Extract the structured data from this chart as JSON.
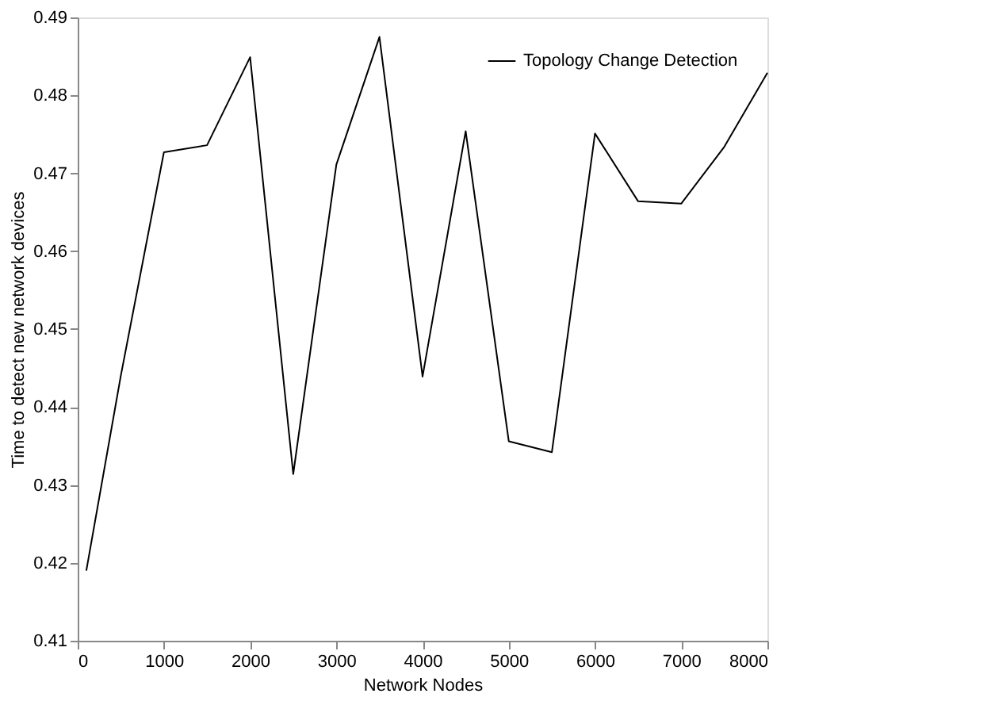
{
  "chart_data": {
    "type": "line",
    "xlabel": "Network Nodes",
    "ylabel": "Time to detect new network devices",
    "x": [
      100,
      500,
      1000,
      1500,
      2000,
      2500,
      3000,
      3500,
      4000,
      4500,
      5000,
      5500,
      6000,
      6500,
      7000,
      7500,
      8000
    ],
    "series": [
      {
        "name": "Topology Change Detection",
        "color": "#000000",
        "values": [
          0.419,
          0.444,
          0.4727,
          0.4736,
          0.4849,
          0.4314,
          0.4711,
          0.4875,
          0.4439,
          0.4754,
          0.4356,
          0.4342,
          0.4751,
          0.4664,
          0.4661,
          0.4734,
          0.4829
        ]
      }
    ],
    "xlim": [
      0,
      8000
    ],
    "xticks": [
      0,
      1000,
      2000,
      3000,
      4000,
      5000,
      6000,
      7000,
      8000
    ],
    "ylim": [
      0.41,
      0.49
    ],
    "yticks": [
      0.41,
      0.42,
      0.43,
      0.44,
      0.45,
      0.46,
      0.47,
      0.48,
      0.49
    ],
    "grid": false,
    "legend": "top right",
    "marker": "none",
    "line_style": "solid"
  }
}
